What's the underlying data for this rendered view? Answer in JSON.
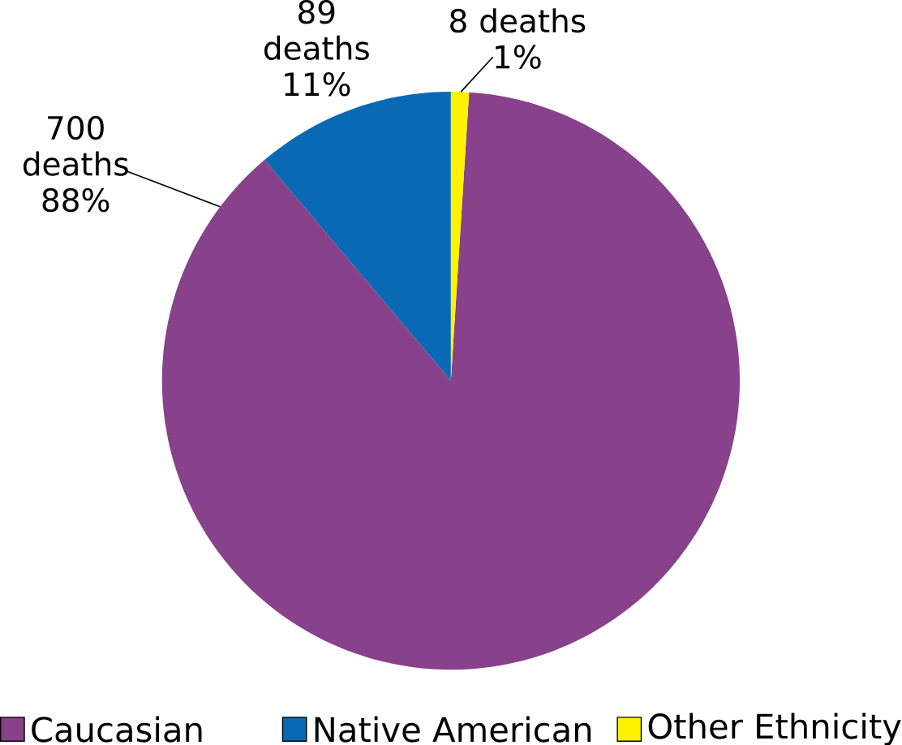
{
  "chart_data": {
    "type": "pie",
    "categories": [
      "Caucasian",
      "Native American",
      "Other Ethnicity"
    ],
    "values": [
      700,
      89,
      8
    ],
    "colors": [
      "#88418b",
      "#0a69b4",
      "#fff200"
    ],
    "value_labels": [
      "700 deaths 88%",
      "89 deaths 11%",
      "8 deaths 1%"
    ],
    "legend": "bottom"
  }
}
